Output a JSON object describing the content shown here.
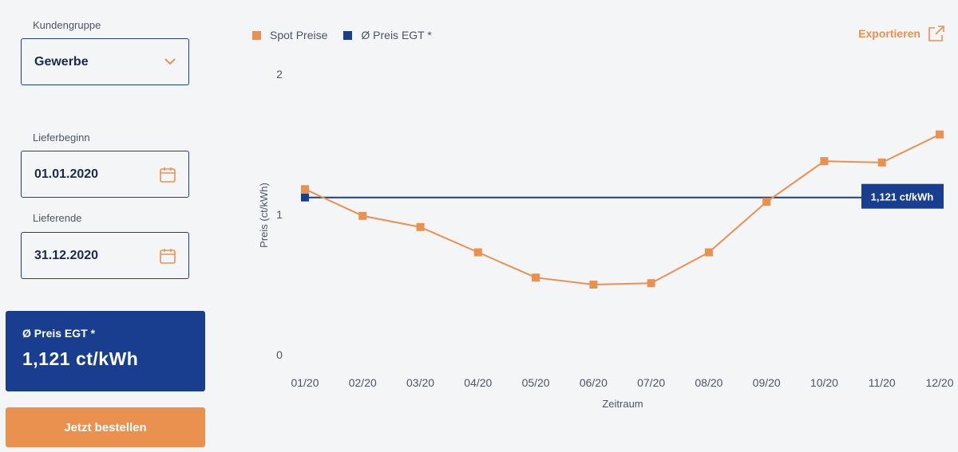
{
  "sidebar": {
    "customer_group_label": "Kundengruppe",
    "customer_group_value": "Gewerbe",
    "delivery_start_label": "Lieferbeginn",
    "delivery_start_value": "01.01.2020",
    "delivery_end_label": "Lieferende",
    "delivery_end_value": "31.12.2020",
    "avg_price_label": "Ø Preis EGT *",
    "avg_price_value": "1,121 ct/kWh",
    "order_button_label": "Jetzt bestellen"
  },
  "header": {
    "export_label": "Exportieren"
  },
  "colors": {
    "spot": "#eb9150",
    "avg": "#1a3e8f",
    "accent": "#eb9150"
  },
  "icons": {
    "dropdown": "chevron-down-icon",
    "calendar": "calendar-icon",
    "export": "export-icon"
  },
  "chart_data": {
    "type": "line",
    "categories": [
      "01/20",
      "02/20",
      "03/20",
      "04/20",
      "05/20",
      "06/20",
      "07/20",
      "08/20",
      "09/20",
      "10/20",
      "11/20",
      "12/20"
    ],
    "series": [
      {
        "name": "Spot Preise",
        "values": [
          1.18,
          0.99,
          0.91,
          0.73,
          0.55,
          0.5,
          0.51,
          0.73,
          1.09,
          1.38,
          1.37,
          1.57
        ]
      },
      {
        "name": "Ø Preis EGT *",
        "values": [
          1.121,
          1.121,
          1.121,
          1.121,
          1.121,
          1.121,
          1.121,
          1.121,
          1.121,
          1.121,
          1.121,
          1.121
        ]
      }
    ],
    "avg_annotation": "1,121 ct/kWh",
    "xlabel": "Zeitraum",
    "ylabel": "Preis (ct/kWh)",
    "yticks": [
      "0",
      "1",
      "2"
    ],
    "ylim": [
      0,
      2
    ],
    "grid": false,
    "legend_position": "top-left"
  }
}
